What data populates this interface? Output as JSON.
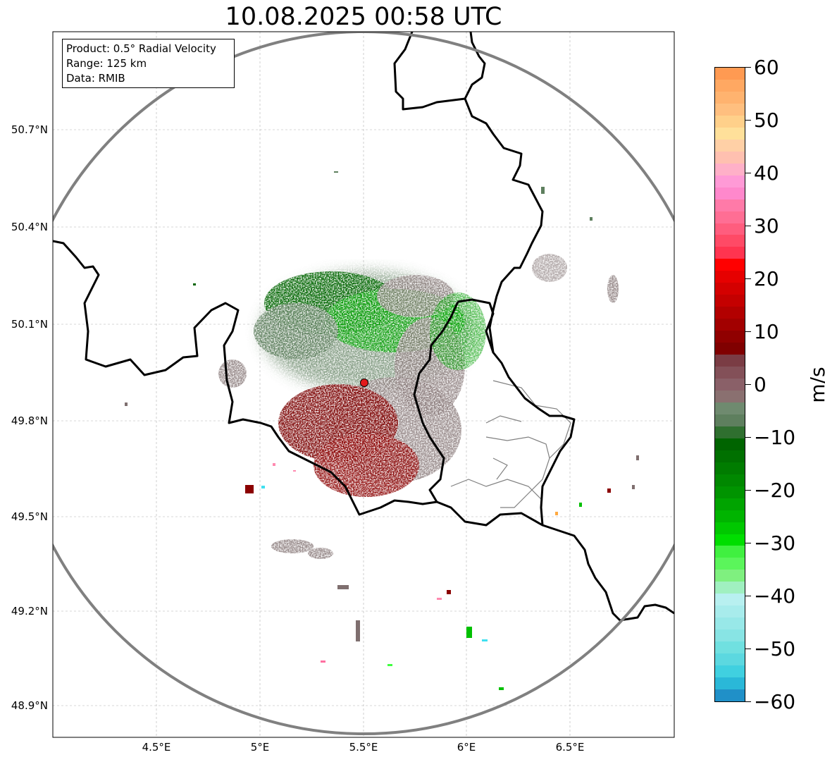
{
  "title": "10.08.2025 00:58 UTC",
  "info_box": {
    "lines": [
      "Product: 0.5° Radial Velocity",
      "Range: 125 km",
      "Data: RMIB"
    ]
  },
  "axes": {
    "lat_ticks": [
      "50.7°N",
      "50.4°N",
      "50.1°N",
      "49.8°N",
      "49.5°N",
      "49.2°N",
      "48.9°N"
    ],
    "lon_ticks": [
      "4.5°E",
      "5°E",
      "5.5°E",
      "6°E",
      "6.5°E"
    ],
    "grid": true
  },
  "map": {
    "radar_site": {
      "lon": 5.505,
      "lat": 49.914
    },
    "range_ring_km": 125,
    "extent": {
      "lon": [
        4.0,
        7.0
      ],
      "lat": [
        48.8,
        51.0
      ]
    }
  },
  "colorbar": {
    "unit": "m/s",
    "ticks": [
      "60",
      "50",
      "40",
      "30",
      "20",
      "10",
      "0",
      "−10",
      "−20",
      "−30",
      "−40",
      "−50",
      "−60"
    ],
    "range": [
      -60,
      60
    ]
  },
  "colors": {
    "range_ring": "#808080",
    "border": "#000000",
    "province": "#808080",
    "radar_marker": "#e31a1c",
    "inbound": "#006400",
    "outbound": "#7a0000",
    "near_zero": "#8a7a7a"
  }
}
